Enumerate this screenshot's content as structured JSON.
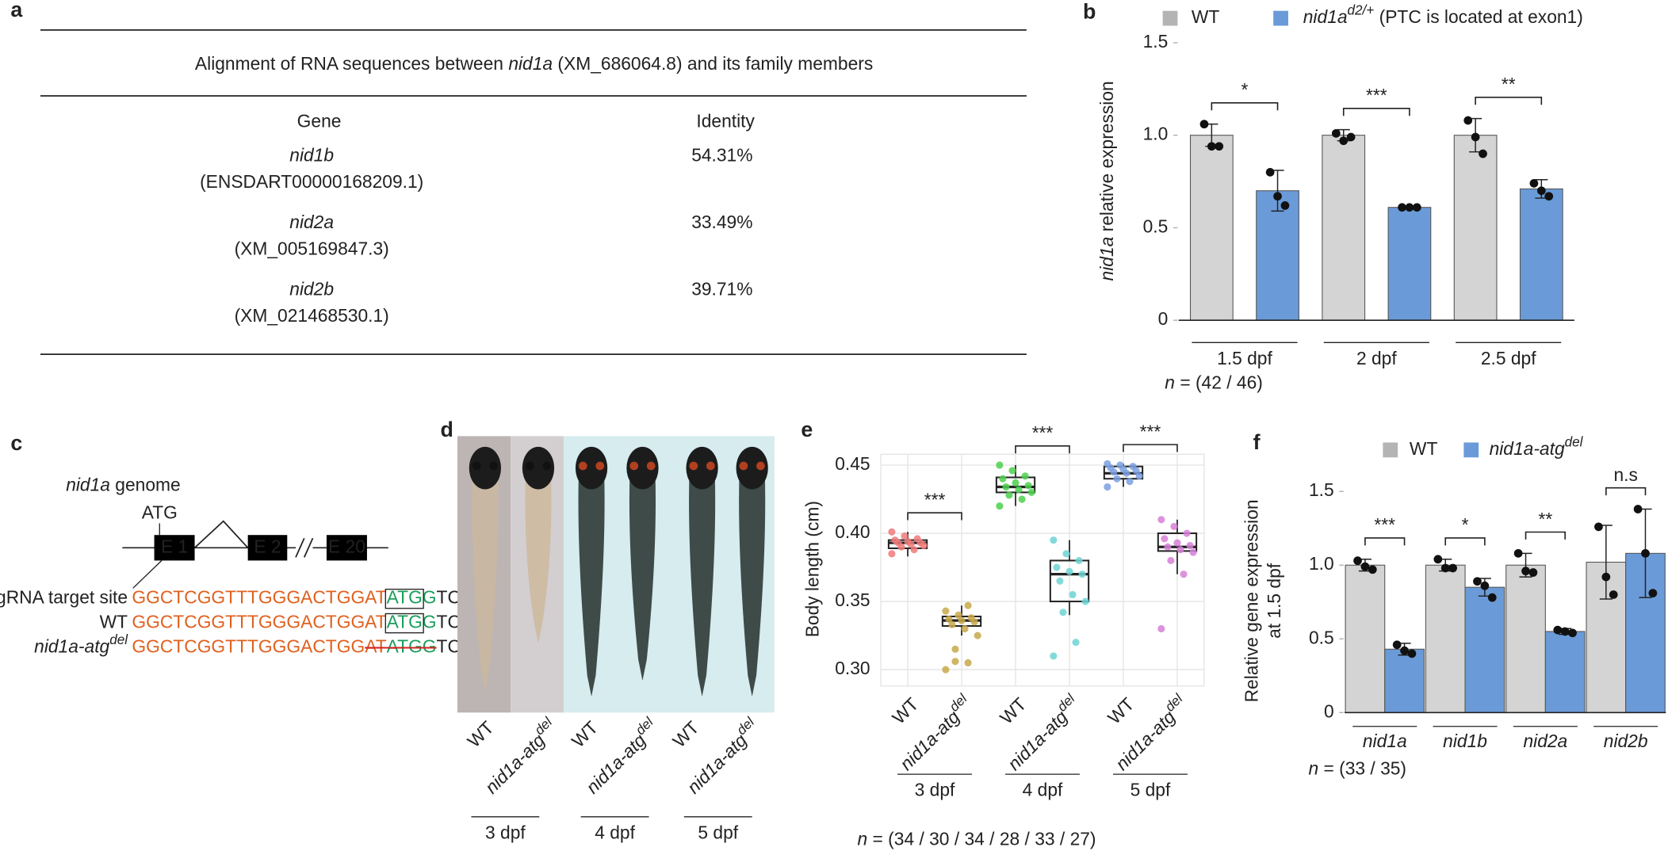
{
  "panel_labels": [
    "a",
    "b",
    "c",
    "d",
    "e",
    "f"
  ],
  "table": {
    "title": [
      "Alignment of RNA sequences between ",
      "nid1a",
      " (XM_686064.8) and its family members"
    ],
    "header": [
      "Gene",
      "Identity"
    ],
    "rows": [
      {
        "gene": "nid1b",
        "accession": "(ENSDART00000168209.1)",
        "identity": "54.31%"
      },
      {
        "gene": "nid2a",
        "accession": "(XM_005169847.3)",
        "identity": "33.49%"
      },
      {
        "gene": "nid2b",
        "accession": "(XM_021468530.1)",
        "identity": "39.71%"
      }
    ]
  },
  "genome": {
    "title": [
      "nid1a",
      " genome"
    ],
    "start_codon": "ATG",
    "exons": [
      "E 1",
      "E 2",
      "E 20"
    ],
    "rows": [
      {
        "label": "gRNA target site",
        "segments": [
          {
            "text": "GGCTCGGTTTGGGACTGGAT",
            "color": "#e0601e"
          },
          {
            "text": "ATG",
            "color": "#1a9e5a",
            "boxed": true
          },
          {
            "text": "G",
            "color": "#1a9e5a"
          },
          {
            "text": "TC",
            "color": "#222222"
          }
        ]
      },
      {
        "label": "WT",
        "segments": [
          {
            "text": "GGCTCGGTTTGGGACTGGAT",
            "color": "#e0601e"
          },
          {
            "text": "ATG",
            "color": "#1a9e5a",
            "boxed": true
          },
          {
            "text": "G",
            "color": "#1a9e5a"
          },
          {
            "text": "TC",
            "color": "#222222"
          }
        ]
      },
      {
        "label": "nid1a-atg",
        "label_sup": "del",
        "segments": [
          {
            "text": "GGCTCGGTTTGGGACTGG",
            "color": "#e0601e"
          },
          {
            "text": "AT",
            "color": "#e0601e",
            "strike": true
          },
          {
            "text": "ATGG",
            "color": "#1a9e5a",
            "strike": true
          },
          {
            "text": "TC",
            "color": "#222222"
          }
        ]
      }
    ]
  },
  "photo": {
    "wt": "WT",
    "mutant": "nid1a-atg",
    "mutant_sup": "del",
    "days": [
      "3 dpf",
      "4 dpf",
      "5 dpf"
    ]
  },
  "chart_data": [
    {
      "type": "bar",
      "categories": [
        "1.5 dpf",
        "2 dpf",
        "2.5 dpf"
      ],
      "ylabel": [
        "nid1a",
        " relative expression"
      ],
      "ylim": [
        0,
        1.5
      ],
      "yticks": [
        0,
        0.5,
        {
          "value": 1,
          "label": "1.0"
        },
        1.5
      ],
      "series": [
        {
          "name": "WT",
          "color": "#d4d4d4",
          "values": [
            1.0,
            1.0,
            1.0
          ],
          "errors": [
            0.06,
            0.03,
            0.09
          ],
          "points": [
            [
              1.06,
              0.94,
              0.94
            ],
            [
              1.01,
              0.97,
              0.99
            ],
            [
              1.08,
              0.99,
              0.9
            ]
          ]
        },
        {
          "name": "nid1a",
          "name_sup": "d2/+",
          "name_note": " (PTC is located at exon1)",
          "color": "#6a9bd8",
          "values": [
            0.7,
            0.61,
            0.71
          ],
          "errors": [
            0.11,
            0.005,
            0.05
          ],
          "points": [
            [
              0.8,
              0.67,
              0.62
            ],
            [
              0.61,
              0.61,
              0.61
            ],
            [
              0.74,
              0.7,
              0.67
            ]
          ]
        }
      ],
      "significance": [
        "*",
        "***",
        "**"
      ],
      "n_symbol": "n",
      "sample_size": " = (42   /   46)",
      "legend": "top"
    },
    {
      "type": "box",
      "categories": [
        "WT",
        "nid1a-atg",
        "WT",
        "nid1a-atg",
        "WT",
        "nid1a-atg"
      ],
      "superscripts": {
        "1": "del",
        "3": "del",
        "5": "del"
      },
      "days": [
        "3 dpf",
        "4 dpf",
        "5 dpf"
      ],
      "ylabel": "Body length  (cm)",
      "ylim": [
        0.288,
        0.458
      ],
      "yticks": [
        {
          "value": 0.3,
          "label": "0.30"
        },
        0.35,
        {
          "value": 0.4,
          "label": "0.40"
        },
        0.45
      ],
      "grid": true,
      "boxes": [
        {
          "color": "#f07a7a",
          "q1": 0.389,
          "median": 0.393,
          "q3": 0.395,
          "whisker_low": 0.383,
          "whisker_high": 0.401,
          "points": [
            0.385,
            0.388,
            0.39,
            0.391,
            0.392,
            0.393,
            0.393,
            0.394,
            0.395,
            0.396,
            0.398,
            0.401
          ]
        },
        {
          "color": "#c8a84a",
          "q1": 0.332,
          "median": 0.336,
          "q3": 0.339,
          "whisker_low": 0.325,
          "whisker_high": 0.347,
          "points": [
            0.3,
            0.305,
            0.315,
            0.325,
            0.33,
            0.333,
            0.335,
            0.336,
            0.337,
            0.338,
            0.34,
            0.343,
            0.347,
            0.306
          ]
        },
        {
          "color": "#4cd04c",
          "q1": 0.43,
          "median": 0.434,
          "q3": 0.441,
          "whisker_low": 0.42,
          "whisker_high": 0.45,
          "points": [
            0.42,
            0.425,
            0.428,
            0.43,
            0.432,
            0.434,
            0.435,
            0.437,
            0.44,
            0.442,
            0.446,
            0.45
          ]
        },
        {
          "color": "#6dd4d4",
          "q1": 0.35,
          "median": 0.37,
          "q3": 0.38,
          "whisker_low": 0.34,
          "whisker_high": 0.395,
          "points": [
            0.31,
            0.32,
            0.342,
            0.35,
            0.355,
            0.365,
            0.37,
            0.372,
            0.375,
            0.38,
            0.385,
            0.395
          ]
        },
        {
          "color": "#7aa0e0",
          "q1": 0.44,
          "median": 0.444,
          "q3": 0.449,
          "whisker_low": 0.434,
          "whisker_high": 0.451,
          "points": [
            0.434,
            0.438,
            0.44,
            0.442,
            0.444,
            0.445,
            0.446,
            0.447,
            0.448,
            0.449,
            0.45,
            0.451
          ]
        },
        {
          "color": "#d680d6",
          "q1": 0.387,
          "median": 0.39,
          "q3": 0.4,
          "whisker_low": 0.37,
          "whisker_high": 0.41,
          "points": [
            0.33,
            0.37,
            0.38,
            0.386,
            0.388,
            0.39,
            0.391,
            0.393,
            0.396,
            0.4,
            0.405,
            0.41
          ]
        }
      ],
      "significance": [
        "***",
        "***",
        "***"
      ],
      "n_symbol": "n",
      "sample_size": " = (34   /  30   / 34   /  28   /  33   /  27)"
    },
    {
      "type": "bar",
      "categories": [
        "nid1a",
        "nid1b",
        "nid2a",
        "nid2b"
      ],
      "italic_categories": true,
      "ylabel": [
        "Relative gene expression",
        "at 1.5 dpf"
      ],
      "ylim": [
        0,
        1.5
      ],
      "yticks": [
        0,
        0.5,
        {
          "value": 1,
          "label": "1.0"
        },
        1.5
      ],
      "series": [
        {
          "name": "WT",
          "color": "#d4d4d4",
          "values": [
            1.0,
            1.0,
            1.0,
            1.02
          ],
          "errors": [
            0.04,
            0.04,
            0.08,
            0.25
          ],
          "points": [
            [
              1.03,
              0.99,
              0.97
            ],
            [
              1.04,
              0.98,
              0.98
            ],
            [
              1.08,
              0.96,
              0.95
            ],
            [
              1.26,
              0.92,
              0.8
            ]
          ]
        },
        {
          "name": "nid1a-atg",
          "name_sup": "del",
          "color": "#6a9bd8",
          "values": [
            0.43,
            0.85,
            0.55,
            1.08
          ],
          "errors": [
            0.04,
            0.06,
            0.02,
            0.3
          ],
          "points": [
            [
              0.46,
              0.42,
              0.4
            ],
            [
              0.89,
              0.86,
              0.78
            ],
            [
              0.56,
              0.55,
              0.54
            ],
            [
              1.38,
              1.08,
              0.81
            ]
          ]
        }
      ],
      "significance": [
        "***",
        "*",
        "**",
        "n.s"
      ],
      "n_symbol": "n",
      "sample_size": " = (33 / 35)",
      "legend": "top"
    }
  ]
}
